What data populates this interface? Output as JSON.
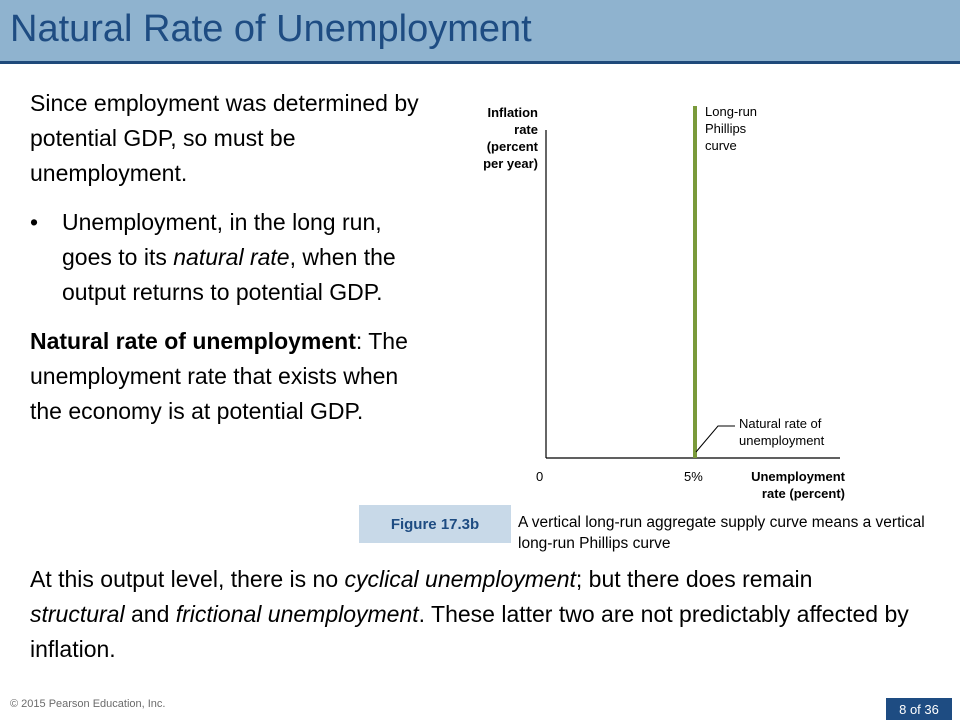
{
  "slide": {
    "title": "Natural Rate of Unemployment",
    "para1": "Since employment was determined by potential GDP, so must be unemployment.",
    "bullet": {
      "marker": "•",
      "text_before": "Unemployment, in the long run, goes to its ",
      "text_italic": "natural rate",
      "text_after": ", when the output returns to potential GDP."
    },
    "definition": {
      "term": "Natural rate of unemployment",
      "rest": ": The unemployment rate that exists when the economy is at potential GDP."
    },
    "bottom": {
      "t1": "At this output level, there is no ",
      "i1": "cyclical unemployment",
      "t2": "; but there does remain ",
      "i2": "structural",
      "t3": " and ",
      "i3": "frictional unemployment",
      "t4": ". These latter two are not predictably affected by inflation."
    },
    "figure_label": "Figure 17.3b",
    "figure_caption": "A vertical long-run aggregate supply curve means a vertical long-run Phillips curve",
    "copyright": "© 2015 Pearson Education, Inc.",
    "page": "8 of 36"
  },
  "chart_data": {
    "type": "line",
    "ylabel_lines": [
      "Inflation",
      "rate",
      "(percent",
      "per year)"
    ],
    "xlabel_lines": [
      "Unemployment",
      "rate (percent)"
    ],
    "x_ticks": [
      "0",
      "5%"
    ],
    "series": [
      {
        "name": "Long-run Phillips curve",
        "x": [
          5,
          5
        ],
        "y": [
          0,
          1
        ],
        "vertical": true
      }
    ],
    "annotations": {
      "curve_label_lines": [
        "Long-run",
        "Phillips",
        "curve"
      ],
      "natural_rate_lines": [
        "Natural rate of",
        "unemployment"
      ]
    },
    "colors": {
      "curve": "#7a9a3a",
      "axis": "#000000"
    }
  }
}
